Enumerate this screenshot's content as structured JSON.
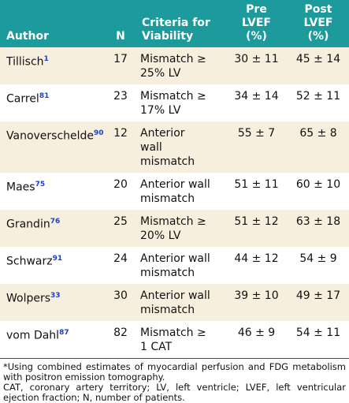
{
  "table": {
    "header": [
      "Author",
      "N",
      "Criteria for Viability",
      "Pre LVEF (%)",
      "Post LVEF (%)"
    ],
    "rows": [
      {
        "author": "Tillisch",
        "ref": "1",
        "n": "17",
        "criteria": [
          "Mismatch ≥",
          "25% LV"
        ],
        "pre": "30 ± 11",
        "post": "45 ± 14"
      },
      {
        "author": "Carrel",
        "ref": "81",
        "n": "23",
        "criteria": [
          "Mismatch ≥",
          "17% LV"
        ],
        "pre": "34 ± 14",
        "post": "52 ± 11"
      },
      {
        "author": "Vanoverschelde",
        "ref": "90",
        "n": "12",
        "criteria": [
          "Anterior",
          "wall",
          "mismatch"
        ],
        "pre": "55 ± 7",
        "post": "65 ± 8"
      },
      {
        "author": "Maes",
        "ref": "75",
        "n": "20",
        "criteria": [
          "Anterior wall",
          "mismatch"
        ],
        "pre": "51 ± 11",
        "post": "60 ± 10"
      },
      {
        "author": "Grandin",
        "ref": "76",
        "n": "25",
        "criteria": [
          "Mismatch ≥",
          "20% LV"
        ],
        "pre": "51 ± 12",
        "post": "63 ± 18"
      },
      {
        "author": "Schwarz",
        "ref": "91",
        "n": "24",
        "criteria": [
          "Anterior wall",
          "mismatch"
        ],
        "pre": "44 ± 12",
        "post": "54 ± 9"
      },
      {
        "author": "Wolpers",
        "ref": "33",
        "n": "30",
        "criteria": [
          "Anterior wall",
          "mismatch"
        ],
        "pre": "39 ± 10",
        "post": "49 ± 17"
      },
      {
        "author": "vom Dahl",
        "ref": "87",
        "n": "82",
        "criteria": [
          "Mismatch ≥",
          "1 CAT"
        ],
        "pre": "46 ± 9",
        "post": "54 ± 11"
      }
    ],
    "footnotes": [
      "*Using combined estimates of myocardial perfusion and FDG metabolism with positron emission tomography.",
      "CAT, coronary artery territory; LV, left ventricle; LVEF, left ventricular ejection fraction; N, number of patients."
    ]
  }
}
